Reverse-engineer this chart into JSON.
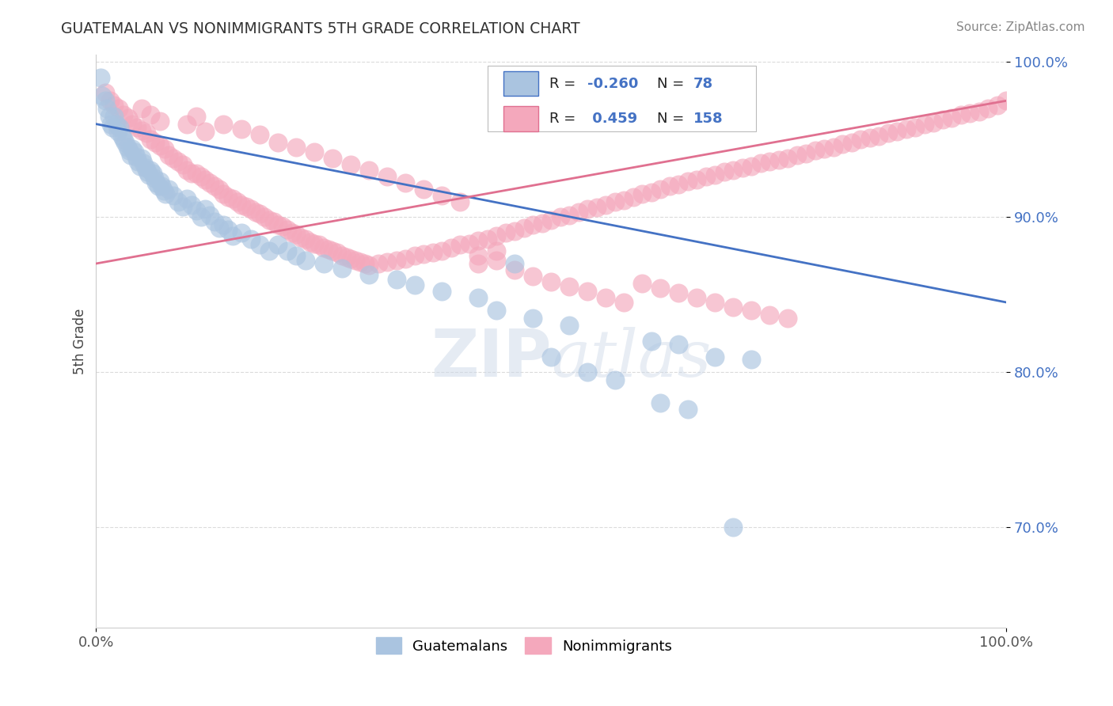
{
  "title": "GUATEMALAN VS NONIMMIGRANTS 5TH GRADE CORRELATION CHART",
  "source": "Source: ZipAtlas.com",
  "ylabel": "5th Grade",
  "xlim": [
    0.0,
    1.0
  ],
  "ylim": [
    0.635,
    1.005
  ],
  "yticks": [
    0.7,
    0.8,
    0.9,
    1.0
  ],
  "ytick_labels": [
    "70.0%",
    "80.0%",
    "90.0%",
    "100.0%"
  ],
  "xticks": [
    0.0,
    1.0
  ],
  "xtick_labels": [
    "0.0%",
    "100.0%"
  ],
  "legend_blue_r": "-0.260",
  "legend_blue_n": "78",
  "legend_pink_r": "0.459",
  "legend_pink_n": "158",
  "blue_color": "#aac4e0",
  "pink_color": "#f4a8bc",
  "blue_line_color": "#4472c4",
  "pink_line_color": "#e07090",
  "background_color": "#ffffff",
  "grid_color": "#cccccc",
  "watermark_text": "ZIPatlas",
  "blue_dots": [
    [
      0.005,
      0.99
    ],
    [
      0.007,
      0.978
    ],
    [
      0.01,
      0.975
    ],
    [
      0.012,
      0.97
    ],
    [
      0.014,
      0.965
    ],
    [
      0.016,
      0.96
    ],
    [
      0.018,
      0.958
    ],
    [
      0.02,
      0.965
    ],
    [
      0.022,
      0.96
    ],
    [
      0.024,
      0.955
    ],
    [
      0.026,
      0.958
    ],
    [
      0.028,
      0.952
    ],
    [
      0.03,
      0.95
    ],
    [
      0.032,
      0.948
    ],
    [
      0.034,
      0.945
    ],
    [
      0.036,
      0.943
    ],
    [
      0.038,
      0.94
    ],
    [
      0.04,
      0.944
    ],
    [
      0.042,
      0.942
    ],
    [
      0.044,
      0.939
    ],
    [
      0.046,
      0.936
    ],
    [
      0.048,
      0.933
    ],
    [
      0.05,
      0.938
    ],
    [
      0.052,
      0.935
    ],
    [
      0.054,
      0.932
    ],
    [
      0.056,
      0.929
    ],
    [
      0.058,
      0.927
    ],
    [
      0.06,
      0.93
    ],
    [
      0.062,
      0.928
    ],
    [
      0.064,
      0.925
    ],
    [
      0.066,
      0.922
    ],
    [
      0.068,
      0.92
    ],
    [
      0.07,
      0.923
    ],
    [
      0.072,
      0.92
    ],
    [
      0.074,
      0.917
    ],
    [
      0.076,
      0.915
    ],
    [
      0.08,
      0.918
    ],
    [
      0.085,
      0.914
    ],
    [
      0.09,
      0.91
    ],
    [
      0.095,
      0.907
    ],
    [
      0.1,
      0.912
    ],
    [
      0.105,
      0.908
    ],
    [
      0.11,
      0.904
    ],
    [
      0.115,
      0.9
    ],
    [
      0.12,
      0.905
    ],
    [
      0.125,
      0.901
    ],
    [
      0.13,
      0.897
    ],
    [
      0.135,
      0.893
    ],
    [
      0.14,
      0.895
    ],
    [
      0.145,
      0.892
    ],
    [
      0.15,
      0.888
    ],
    [
      0.16,
      0.89
    ],
    [
      0.17,
      0.886
    ],
    [
      0.18,
      0.882
    ],
    [
      0.19,
      0.878
    ],
    [
      0.2,
      0.882
    ],
    [
      0.21,
      0.878
    ],
    [
      0.22,
      0.875
    ],
    [
      0.23,
      0.872
    ],
    [
      0.25,
      0.87
    ],
    [
      0.27,
      0.867
    ],
    [
      0.3,
      0.863
    ],
    [
      0.33,
      0.86
    ],
    [
      0.35,
      0.856
    ],
    [
      0.38,
      0.852
    ],
    [
      0.42,
      0.848
    ],
    [
      0.46,
      0.87
    ],
    [
      0.5,
      0.81
    ],
    [
      0.54,
      0.8
    ],
    [
      0.57,
      0.795
    ],
    [
      0.61,
      0.82
    ],
    [
      0.64,
      0.818
    ],
    [
      0.68,
      0.81
    ],
    [
      0.72,
      0.808
    ],
    [
      0.62,
      0.78
    ],
    [
      0.65,
      0.776
    ],
    [
      0.44,
      0.84
    ],
    [
      0.48,
      0.835
    ],
    [
      0.52,
      0.83
    ],
    [
      0.7,
      0.7
    ]
  ],
  "pink_dots": [
    [
      0.01,
      0.98
    ],
    [
      0.015,
      0.975
    ],
    [
      0.02,
      0.972
    ],
    [
      0.025,
      0.97
    ],
    [
      0.03,
      0.966
    ],
    [
      0.035,
      0.964
    ],
    [
      0.04,
      0.96
    ],
    [
      0.045,
      0.958
    ],
    [
      0.05,
      0.956
    ],
    [
      0.055,
      0.954
    ],
    [
      0.06,
      0.95
    ],
    [
      0.065,
      0.948
    ],
    [
      0.07,
      0.946
    ],
    [
      0.075,
      0.944
    ],
    [
      0.08,
      0.94
    ],
    [
      0.085,
      0.938
    ],
    [
      0.09,
      0.936
    ],
    [
      0.095,
      0.934
    ],
    [
      0.1,
      0.93
    ],
    [
      0.105,
      0.928
    ],
    [
      0.11,
      0.928
    ],
    [
      0.115,
      0.926
    ],
    [
      0.12,
      0.924
    ],
    [
      0.125,
      0.922
    ],
    [
      0.13,
      0.92
    ],
    [
      0.135,
      0.918
    ],
    [
      0.14,
      0.915
    ],
    [
      0.145,
      0.913
    ],
    [
      0.15,
      0.912
    ],
    [
      0.155,
      0.91
    ],
    [
      0.16,
      0.908
    ],
    [
      0.165,
      0.907
    ],
    [
      0.17,
      0.905
    ],
    [
      0.175,
      0.903
    ],
    [
      0.18,
      0.902
    ],
    [
      0.185,
      0.9
    ],
    [
      0.19,
      0.898
    ],
    [
      0.195,
      0.897
    ],
    [
      0.2,
      0.895
    ],
    [
      0.205,
      0.894
    ],
    [
      0.21,
      0.892
    ],
    [
      0.215,
      0.89
    ],
    [
      0.22,
      0.889
    ],
    [
      0.225,
      0.887
    ],
    [
      0.23,
      0.886
    ],
    [
      0.235,
      0.884
    ],
    [
      0.24,
      0.883
    ],
    [
      0.245,
      0.882
    ],
    [
      0.25,
      0.88
    ],
    [
      0.255,
      0.879
    ],
    [
      0.26,
      0.878
    ],
    [
      0.265,
      0.877
    ],
    [
      0.27,
      0.875
    ],
    [
      0.275,
      0.874
    ],
    [
      0.28,
      0.873
    ],
    [
      0.285,
      0.872
    ],
    [
      0.29,
      0.871
    ],
    [
      0.295,
      0.87
    ],
    [
      0.3,
      0.869
    ],
    [
      0.31,
      0.87
    ],
    [
      0.32,
      0.871
    ],
    [
      0.33,
      0.872
    ],
    [
      0.34,
      0.873
    ],
    [
      0.35,
      0.875
    ],
    [
      0.36,
      0.876
    ],
    [
      0.37,
      0.877
    ],
    [
      0.38,
      0.878
    ],
    [
      0.39,
      0.88
    ],
    [
      0.4,
      0.882
    ],
    [
      0.41,
      0.883
    ],
    [
      0.42,
      0.885
    ],
    [
      0.43,
      0.886
    ],
    [
      0.44,
      0.888
    ],
    [
      0.45,
      0.89
    ],
    [
      0.46,
      0.891
    ],
    [
      0.47,
      0.893
    ],
    [
      0.48,
      0.895
    ],
    [
      0.49,
      0.896
    ],
    [
      0.5,
      0.898
    ],
    [
      0.51,
      0.9
    ],
    [
      0.52,
      0.901
    ],
    [
      0.53,
      0.903
    ],
    [
      0.54,
      0.905
    ],
    [
      0.55,
      0.906
    ],
    [
      0.56,
      0.908
    ],
    [
      0.57,
      0.91
    ],
    [
      0.58,
      0.911
    ],
    [
      0.59,
      0.913
    ],
    [
      0.6,
      0.915
    ],
    [
      0.61,
      0.916
    ],
    [
      0.62,
      0.918
    ],
    [
      0.63,
      0.92
    ],
    [
      0.64,
      0.921
    ],
    [
      0.65,
      0.923
    ],
    [
      0.66,
      0.924
    ],
    [
      0.67,
      0.926
    ],
    [
      0.68,
      0.927
    ],
    [
      0.69,
      0.929
    ],
    [
      0.7,
      0.93
    ],
    [
      0.71,
      0.932
    ],
    [
      0.72,
      0.933
    ],
    [
      0.73,
      0.935
    ],
    [
      0.74,
      0.936
    ],
    [
      0.75,
      0.937
    ],
    [
      0.76,
      0.938
    ],
    [
      0.77,
      0.94
    ],
    [
      0.78,
      0.941
    ],
    [
      0.79,
      0.943
    ],
    [
      0.8,
      0.944
    ],
    [
      0.81,
      0.945
    ],
    [
      0.82,
      0.947
    ],
    [
      0.83,
      0.948
    ],
    [
      0.84,
      0.95
    ],
    [
      0.85,
      0.951
    ],
    [
      0.86,
      0.952
    ],
    [
      0.87,
      0.954
    ],
    [
      0.88,
      0.955
    ],
    [
      0.89,
      0.957
    ],
    [
      0.9,
      0.958
    ],
    [
      0.91,
      0.96
    ],
    [
      0.92,
      0.961
    ],
    [
      0.93,
      0.963
    ],
    [
      0.94,
      0.964
    ],
    [
      0.95,
      0.966
    ],
    [
      0.96,
      0.967
    ],
    [
      0.97,
      0.968
    ],
    [
      0.98,
      0.97
    ],
    [
      0.99,
      0.972
    ],
    [
      1.0,
      0.975
    ],
    [
      0.12,
      0.955
    ],
    [
      0.14,
      0.96
    ],
    [
      0.16,
      0.957
    ],
    [
      0.18,
      0.953
    ],
    [
      0.2,
      0.948
    ],
    [
      0.22,
      0.945
    ],
    [
      0.24,
      0.942
    ],
    [
      0.26,
      0.938
    ],
    [
      0.28,
      0.934
    ],
    [
      0.3,
      0.93
    ],
    [
      0.32,
      0.926
    ],
    [
      0.34,
      0.922
    ],
    [
      0.36,
      0.918
    ],
    [
      0.38,
      0.914
    ],
    [
      0.4,
      0.91
    ],
    [
      0.1,
      0.96
    ],
    [
      0.11,
      0.965
    ],
    [
      0.05,
      0.97
    ],
    [
      0.06,
      0.966
    ],
    [
      0.07,
      0.962
    ],
    [
      0.42,
      0.87
    ],
    [
      0.44,
      0.872
    ],
    [
      0.46,
      0.866
    ],
    [
      0.48,
      0.862
    ],
    [
      0.5,
      0.858
    ],
    [
      0.52,
      0.855
    ],
    [
      0.54,
      0.852
    ],
    [
      0.56,
      0.848
    ],
    [
      0.58,
      0.845
    ],
    [
      0.6,
      0.857
    ],
    [
      0.62,
      0.854
    ],
    [
      0.64,
      0.851
    ],
    [
      0.66,
      0.848
    ],
    [
      0.68,
      0.845
    ],
    [
      0.7,
      0.842
    ],
    [
      0.72,
      0.84
    ],
    [
      0.74,
      0.837
    ],
    [
      0.76,
      0.835
    ],
    [
      0.42,
      0.875
    ],
    [
      0.44,
      0.878
    ]
  ],
  "blue_trend_x": [
    0.0,
    1.0
  ],
  "blue_trend_y": [
    0.96,
    0.845
  ],
  "pink_trend_x": [
    0.0,
    1.0
  ],
  "pink_trend_y": [
    0.87,
    0.975
  ]
}
